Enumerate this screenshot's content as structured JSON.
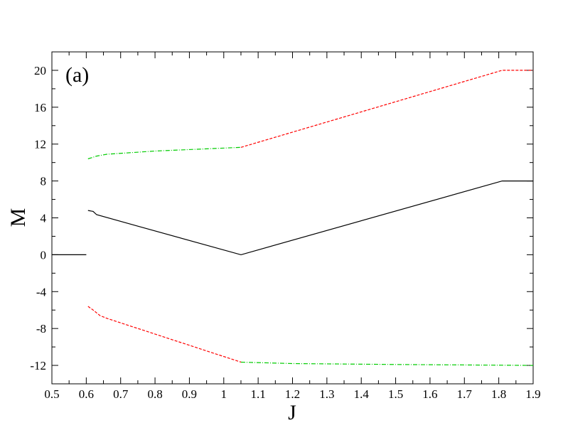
{
  "chart_data": {
    "type": "line",
    "panel_label": "(a)",
    "xlabel": "J",
    "ylabel": "M",
    "xlim": [
      0.5,
      1.9
    ],
    "ylim": [
      -14,
      22
    ],
    "x_ticks": [
      "0.5",
      "0.6",
      "0.7",
      "0.8",
      "0.9",
      "1",
      "1.1",
      "1.2",
      "1.3",
      "1.4",
      "1.5",
      "1.6",
      "1.7",
      "1.8",
      "1.9"
    ],
    "y_ticks": [
      "-12",
      "-8",
      "-4",
      "0",
      "4",
      "8",
      "12",
      "16",
      "20"
    ],
    "grid": false,
    "colors": {
      "black": "#000000",
      "red": "#ff0000",
      "green": "#00cc00"
    },
    "series": [
      {
        "color": "#000000",
        "style": "solid",
        "points": [
          [
            0.5,
            0
          ],
          [
            0.6,
            0
          ]
        ]
      },
      {
        "color": "#000000",
        "style": "solid",
        "points": [
          [
            0.605,
            4.8
          ],
          [
            0.62,
            4.7
          ],
          [
            0.63,
            4.35
          ],
          [
            0.75,
            3.1
          ],
          [
            1.05,
            0
          ],
          [
            1.81,
            8
          ],
          [
            1.9,
            8
          ]
        ]
      },
      {
        "color": "#00cc00",
        "style": "dash-dot",
        "points": [
          [
            0.605,
            10.4
          ],
          [
            0.63,
            10.7
          ],
          [
            0.66,
            10.9
          ],
          [
            0.8,
            11.25
          ],
          [
            1.05,
            11.65
          ]
        ]
      },
      {
        "color": "#ff0000",
        "style": "dashed",
        "points": [
          [
            1.05,
            11.65
          ],
          [
            1.81,
            20
          ],
          [
            1.9,
            20
          ]
        ]
      },
      {
        "color": "#ff0000",
        "style": "dashed",
        "points": [
          [
            0.605,
            -5.6
          ],
          [
            0.62,
            -6
          ],
          [
            0.64,
            -6.6
          ],
          [
            0.66,
            -6.9
          ],
          [
            1.05,
            -11.65
          ]
        ]
      },
      {
        "color": "#00cc00",
        "style": "dash-dot",
        "points": [
          [
            1.05,
            -11.65
          ],
          [
            1.2,
            -11.8
          ],
          [
            1.5,
            -11.9
          ],
          [
            1.9,
            -12
          ]
        ]
      }
    ]
  }
}
